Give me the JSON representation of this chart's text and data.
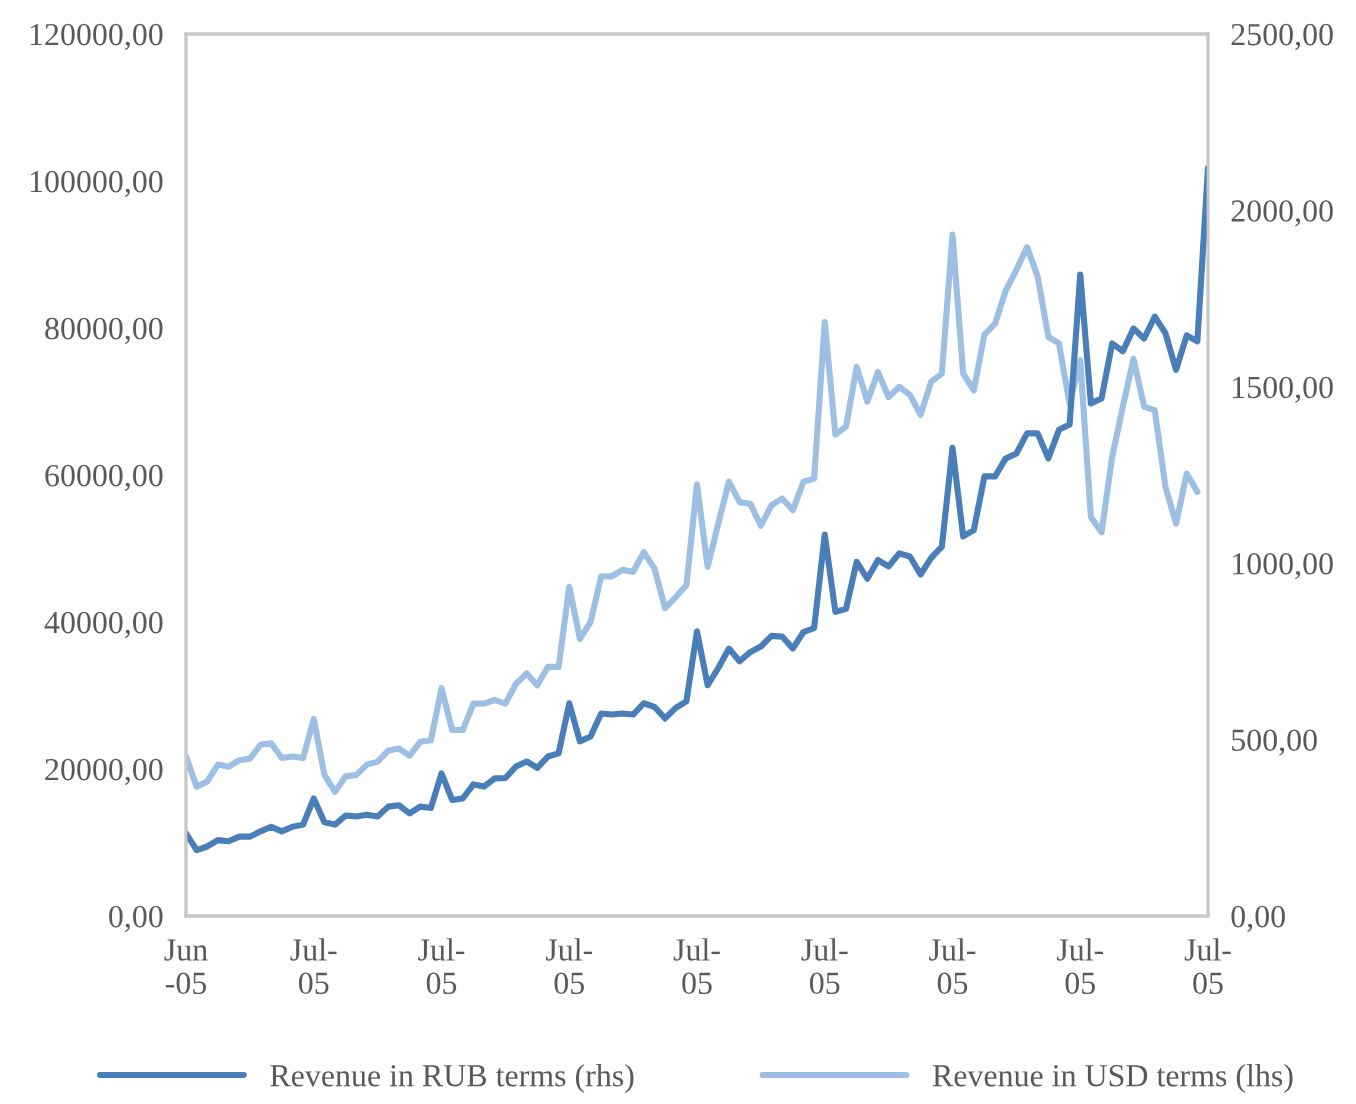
{
  "chart_data": {
    "type": "line",
    "categories": [
      "Jun\n-05",
      null,
      null,
      null,
      null,
      null,
      null,
      null,
      null,
      null,
      null,
      null,
      "Jul-\n05",
      null,
      null,
      null,
      null,
      null,
      null,
      null,
      null,
      null,
      null,
      null,
      "Jul-\n05",
      null,
      null,
      null,
      null,
      null,
      null,
      null,
      null,
      null,
      null,
      null,
      "Jul-\n05",
      null,
      null,
      null,
      null,
      null,
      null,
      null,
      null,
      null,
      null,
      null,
      "Jul-\n05",
      null,
      null,
      null,
      null,
      null,
      null,
      null,
      null,
      null,
      null,
      null,
      "Jul-\n05",
      null,
      null,
      null,
      null,
      null,
      null,
      null,
      null,
      null,
      null,
      null,
      "Jul-\n05",
      null,
      null,
      null,
      null,
      null,
      null,
      null,
      null,
      null,
      null,
      null,
      "Jul-\n05",
      null,
      null,
      null,
      null,
      null,
      null,
      null,
      null,
      null,
      null,
      null,
      "Jul-\n05"
    ],
    "series": [
      {
        "name": "Revenue in RUB terms (rhs)",
        "color": "#4a7eb8",
        "axis": "y2",
        "values": [
          234,
          187,
          197,
          215,
          212,
          225,
          225,
          240,
          253,
          240,
          253,
          259,
          333,
          266,
          259,
          285,
          282,
          287,
          282,
          310,
          314,
          291,
          310,
          306,
          404,
          329,
          333,
          373,
          367,
          390,
          391,
          424,
          438,
          420,
          452,
          461,
          603,
          495,
          509,
          574,
          571,
          574,
          571,
          603,
          593,
          560,
          590,
          608,
          807,
          654,
          703,
          758,
          722,
          748,
          764,
          794,
          792,
          758,
          805,
          816,
          1081,
          862,
          871,
          1004,
          956,
          1009,
          991,
          1028,
          1019,
          968,
          1015,
          1047,
          1327,
          1076,
          1094,
          1246,
          1246,
          1297,
          1311,
          1368,
          1368,
          1297,
          1378,
          1393,
          1818,
          1453,
          1467,
          1623,
          1601,
          1665,
          1637,
          1699,
          1652,
          1548,
          1646,
          1629,
          2120
        ]
      },
      {
        "name": "Revenue in USD terms (lhs)",
        "color": "#9dbfe3",
        "axis": "y",
        "values": [
          21700,
          17600,
          18300,
          20600,
          20300,
          21200,
          21400,
          23300,
          23500,
          21500,
          21700,
          21500,
          26800,
          19200,
          16900,
          19000,
          19200,
          20600,
          21000,
          22500,
          22800,
          21800,
          23700,
          23900,
          31000,
          25300,
          25300,
          28900,
          28900,
          29400,
          28900,
          31600,
          33000,
          31400,
          33900,
          33900,
          44800,
          37700,
          40000,
          46200,
          46200,
          47100,
          46800,
          49500,
          47300,
          41900,
          43400,
          45000,
          58700,
          47500,
          53400,
          59100,
          56300,
          56100,
          53100,
          55900,
          56800,
          55200,
          59100,
          59500,
          80800,
          65500,
          66600,
          74700,
          70000,
          74000,
          70600,
          72000,
          70900,
          68200,
          72700,
          73800,
          92700,
          73800,
          71500,
          79100,
          80600,
          85100,
          87900,
          91000,
          87000,
          78800,
          77900,
          69700,
          75600,
          54300,
          52200,
          62500,
          69300,
          75800,
          69300,
          68800,
          58400,
          53400,
          60200,
          57700,
          null
        ]
      }
    ],
    "ylim": [
      0,
      120000
    ],
    "yticks": [
      {
        "value": 0,
        "label": "0,00"
      },
      {
        "value": 20000,
        "label": "20000,00"
      },
      {
        "value": 40000,
        "label": "40000,00"
      },
      {
        "value": 60000,
        "label": "60000,00"
      },
      {
        "value": 80000,
        "label": "80000,00"
      },
      {
        "value": 100000,
        "label": "100000,00"
      },
      {
        "value": 120000,
        "label": "120000,00"
      }
    ],
    "y2lim": [
      0,
      2500
    ],
    "y2ticks": [
      {
        "value": 0,
        "label": "0,00"
      },
      {
        "value": 500,
        "label": "500,00"
      },
      {
        "value": 1000,
        "label": "1000,00"
      },
      {
        "value": 1500,
        "label": "1500,00"
      },
      {
        "value": 2000,
        "label": "2000,00"
      },
      {
        "value": 2500,
        "label": "2500,00"
      }
    ],
    "grid": false,
    "legend": "bottom",
    "marker": "none",
    "line_style": "solid"
  }
}
